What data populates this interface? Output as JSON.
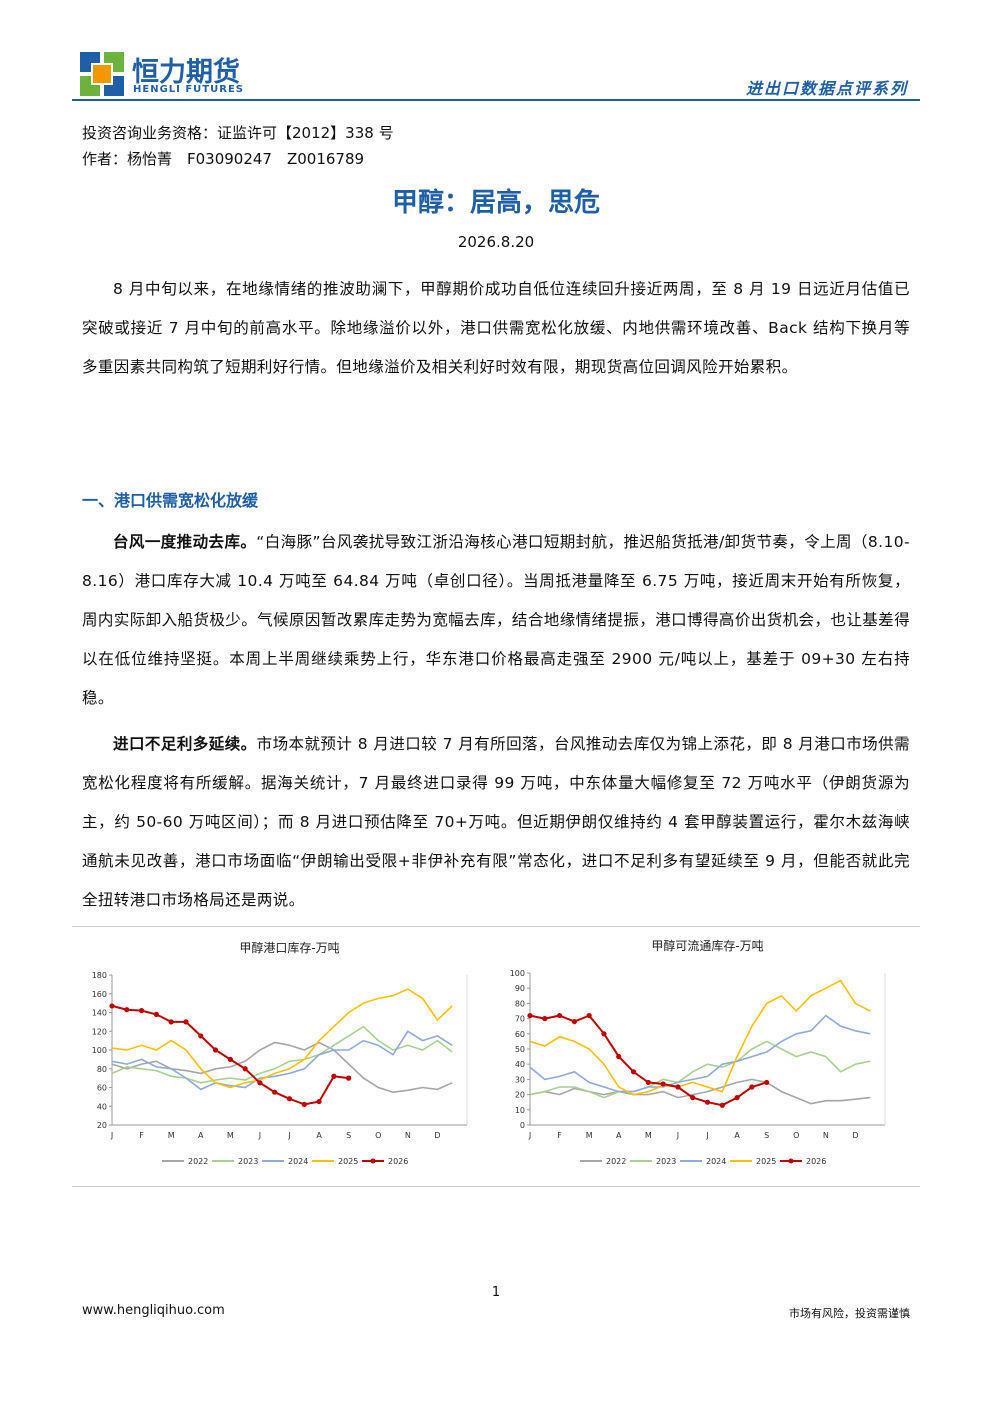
{
  "header": {
    "brand": "恒力期货",
    "brand_en": "HENGLI FUTURES",
    "series_title": "进出口数据点评系列"
  },
  "meta": {
    "qualification": "投资咨询业务资格：证监许可【2012】338 号",
    "author": "作者：杨怡菁　F03090247　Z0016789"
  },
  "title": "甲醇：居高，思危",
  "date": "2026.8.20",
  "intro": "8 月中旬以来，在地缘情绪的推波助澜下，甲醇期价成功自低位连续回升接近两周，至 8 月 19 日远近月估值已突破或接近 7 月中旬的前高水平。除地缘溢价以外，港口供需宽松化放缓、内地供需环境改善、Back 结构下换月等多重因素共同构筑了短期利好行情。但地缘溢价及相关利好时效有限，期现货高位回调风险开始累积。",
  "section": {
    "heading": "一、港口供需宽松化放缓",
    "paragraphs": [
      {
        "lead": "台风一度推动去库。",
        "body": "“白海豚”台风袭扰导致江浙沿海核心港口短期封航，推迟船货抵港/卸货节奏，令上周（8.10-8.16）港口库存大减 10.4 万吨至 64.84 万吨（卓创口径）。当周抵港量降至 6.75 万吨，接近周末开始有所恢复，周内实际卸入船货极少。气候原因暂改累库走势为宽幅去库，结合地缘情绪提振，港口博得高价出货机会，也让基差得以在低位维持坚挺。本周上半周继续乘势上行，华东港口价格最高走强至 2900 元/吨以上，基差于 09+30 左右持稳。"
      },
      {
        "lead": "进口不足利多延续。",
        "body": "市场本就预计 8 月进口较 7 月有所回落，台风推动去库仅为锦上添花，即 8 月港口市场供需宽松化程度将有所缓解。据海关统计，7 月最终进口录得 99 万吨，中东体量大幅修复至 72 万吨水平（伊朗货源为主，约 50-60 万吨区间）；而 8 月进口预估降至 70+万吨。但近期伊朗仅维持约 4 套甲醇装置运行，霍尔木兹海峡通航未见改善，港口市场面临“伊朗输出受限+非伊补充有限”常态化，进口不足利多有望延续至 9 月，但能否就此完全扭转港口市场格局还是两说。"
      }
    ]
  },
  "charts": [
    {
      "type": "line",
      "title": "甲醇港口库存-万吨",
      "categories": [
        "J",
        null,
        "F",
        null,
        "M",
        null,
        "A",
        null,
        "M",
        null,
        "J",
        null,
        "J",
        null,
        "A",
        null,
        "S",
        null,
        "O",
        null,
        "N",
        null,
        "D",
        null
      ],
      "ylim": [
        20,
        180
      ],
      "yticks": [
        20,
        40,
        60,
        80,
        100,
        120,
        140,
        160,
        180
      ],
      "legend": "bottom",
      "grid": false,
      "series": [
        {
          "name": "2022",
          "color": "#a6a6a6",
          "values": [
            85,
            80,
            85,
            88,
            80,
            78,
            75,
            80,
            82,
            88,
            100,
            108,
            105,
            100,
            108,
            100,
            85,
            70,
            60,
            55,
            57,
            60,
            58,
            65
          ]
        },
        {
          "name": "2023",
          "color": "#a9d18e",
          "values": [
            75,
            82,
            80,
            78,
            72,
            70,
            65,
            68,
            70,
            68,
            75,
            80,
            88,
            90,
            95,
            105,
            115,
            125,
            110,
            100,
            105,
            100,
            110,
            98
          ]
        },
        {
          "name": "2024",
          "color": "#8faadc",
          "values": [
            88,
            85,
            90,
            82,
            80,
            70,
            58,
            65,
            62,
            60,
            70,
            72,
            75,
            80,
            95,
            100,
            100,
            110,
            105,
            95,
            120,
            110,
            115,
            105
          ]
        },
        {
          "name": "2025",
          "color": "#ffc000",
          "values": [
            102,
            100,
            105,
            100,
            110,
            100,
            80,
            65,
            60,
            65,
            68,
            75,
            80,
            90,
            110,
            125,
            140,
            150,
            155,
            158,
            165,
            155,
            132,
            147
          ]
        },
        {
          "name": "2026",
          "color": "#c00000",
          "values": [
            147,
            143,
            142,
            138,
            130,
            130,
            115,
            100,
            90,
            80,
            65,
            55,
            48,
            42,
            45,
            72,
            70,
            null,
            null,
            null,
            null,
            null,
            null,
            null
          ]
        }
      ]
    },
    {
      "type": "line",
      "title": "甲醇可流通库存-万吨",
      "categories": [
        "J",
        null,
        "F",
        null,
        "M",
        null,
        "A",
        null,
        "M",
        null,
        "J",
        null,
        "J",
        null,
        "A",
        null,
        "S",
        null,
        "O",
        null,
        "N",
        null,
        "D",
        null
      ],
      "ylim": [
        0,
        100
      ],
      "yticks": [
        0,
        10,
        20,
        30,
        40,
        50,
        60,
        70,
        80,
        90,
        100
      ],
      "legend": "bottom",
      "grid": false,
      "series": [
        {
          "name": "2022",
          "color": "#a6a6a6",
          "values": [
            20,
            22,
            20,
            24,
            22,
            20,
            22,
            20,
            20,
            22,
            18,
            20,
            22,
            25,
            28,
            30,
            28,
            22,
            18,
            14,
            16,
            16,
            17,
            18
          ]
        },
        {
          "name": "2023",
          "color": "#a9d18e",
          "values": [
            20,
            22,
            25,
            25,
            22,
            18,
            22,
            22,
            25,
            30,
            28,
            35,
            40,
            38,
            42,
            50,
            55,
            50,
            45,
            48,
            45,
            35,
            40,
            42
          ]
        },
        {
          "name": "2024",
          "color": "#8faadc",
          "values": [
            38,
            30,
            32,
            35,
            28,
            25,
            22,
            22,
            25,
            25,
            28,
            30,
            32,
            40,
            42,
            45,
            48,
            55,
            60,
            62,
            72,
            65,
            62,
            60
          ]
        },
        {
          "name": "2025",
          "color": "#ffc000",
          "values": [
            55,
            52,
            58,
            55,
            50,
            40,
            25,
            20,
            22,
            26,
            25,
            28,
            25,
            22,
            45,
            65,
            80,
            85,
            75,
            85,
            90,
            95,
            80,
            75
          ]
        },
        {
          "name": "2026",
          "color": "#c00000",
          "values": [
            72,
            70,
            72,
            68,
            72,
            60,
            45,
            35,
            28,
            27,
            25,
            18,
            15,
            13,
            18,
            25,
            28,
            null,
            null,
            null,
            null,
            null,
            null,
            null
          ]
        }
      ]
    }
  ],
  "footer": {
    "page": "1",
    "website": "www.hengliqihuo.com",
    "disclaimer": "市场有风险，投资需谨慎"
  }
}
